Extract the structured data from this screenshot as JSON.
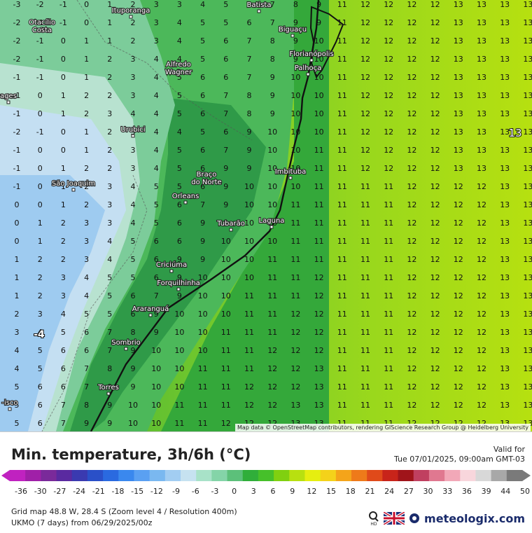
{
  "legend": {
    "title": "Min. temperature, 3h/6h (°C)",
    "valid_label": "Valid for",
    "valid_time": "Tue 07/01/2025, 09:00am GMT-03",
    "ticks": [
      "-36",
      "-30",
      "-27",
      "-24",
      "-21",
      "-18",
      "-15",
      "-12",
      "-9",
      "-6",
      "-3",
      "0",
      "3",
      "6",
      "9",
      "12",
      "15",
      "18",
      "21",
      "24",
      "27",
      "30",
      "33",
      "36",
      "39",
      "44",
      "50"
    ],
    "grid_info": "Grid map 48.8 W, 28.4 S (Zoom level 4 / Resolution 400m)",
    "model_info": "UKMO (7 days) from  06/29/2025/00z",
    "brand": "meteologix.com",
    "colors": [
      "#c022c0",
      "#a020a8",
      "#7a2a9a",
      "#5a2aa0",
      "#3a3ab0",
      "#2a50c8",
      "#2a6ae0",
      "#3a88ee",
      "#5aa0f2",
      "#7ab8f0",
      "#a2cdf2",
      "#c6e2f0",
      "#a8e2c8",
      "#84d4a8",
      "#5cc07a",
      "#30ae3a",
      "#46c02a",
      "#80d010",
      "#b8e010",
      "#e6ee10",
      "#f4d21a",
      "#f4a41a",
      "#ee7a1a",
      "#e04a1a",
      "#c8241a",
      "#a0141a",
      "#c04060",
      "#e07890",
      "#f2a8b8",
      "#f8d6dc",
      "#d8d8d8",
      "#a8a8a8",
      "#7a7a7a"
    ]
  },
  "map": {
    "attribution": "Map data © OpenStreetMap contributors, rendering GIScience Research Group @ Heidelberg University",
    "big_label_13": "13",
    "big_label_minus4": "-4",
    "cities": [
      "Ituporanga",
      "Batista",
      "Otacílio Costa",
      "Biguaçu",
      "Florianópolis",
      "Palhoça",
      "Alfredo Wagner",
      "ages",
      "Urubici",
      "Imbituba",
      "Braço do Norte",
      "São Joaquim",
      "Orleans",
      "Tubarão",
      "Laguna",
      "Criciúma",
      "Forquilhinha",
      "Araranguá",
      "Sombrio",
      "Torres",
      "-isco"
    ]
  }
}
